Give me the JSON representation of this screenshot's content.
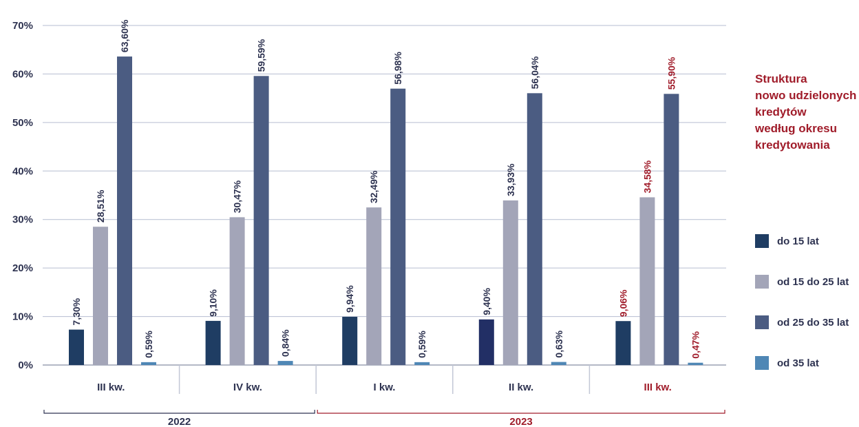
{
  "colors": {
    "series": [
      "#1f3d63",
      "#a3a5b8",
      "#4b5c82",
      "#4f87b5"
    ],
    "accent_red": "#a01c2a",
    "dark_text": "#2d3250",
    "navy_bar_variant": "#222f65"
  },
  "side_title": [
    "Struktura",
    "nowo udzielonych",
    "kredytów",
    "według okresu",
    "kredytowania"
  ],
  "chart_data": {
    "type": "bar",
    "categories": [
      "III kw.",
      "IV kw.",
      "I kw.",
      "II kw.",
      "III kw."
    ],
    "category_colors": [
      "#2d3250",
      "#2d3250",
      "#2d3250",
      "#2d3250",
      "#a01c2a"
    ],
    "groups": [
      {
        "label": "2022",
        "span": [
          0,
          1
        ],
        "color": "#2d3250"
      },
      {
        "label": "2023",
        "span": [
          2,
          4
        ],
        "color": "#a01c2a"
      }
    ],
    "series": [
      {
        "name": "do 15 lat",
        "values": [
          7.3,
          9.1,
          9.94,
          9.4,
          9.06
        ],
        "labels": [
          "7,30%",
          "9,10%",
          "9,94%",
          "9,40%",
          "9,06%"
        ]
      },
      {
        "name": "od 15 do 25 lat",
        "values": [
          28.51,
          30.47,
          32.49,
          33.93,
          34.58
        ],
        "labels": [
          "28,51%",
          "30,47%",
          "32,49%",
          "33,93%",
          "34,58%"
        ]
      },
      {
        "name": "od 25 do 35 lat",
        "values": [
          63.6,
          59.59,
          56.98,
          56.04,
          55.9
        ],
        "labels": [
          "63,60%",
          "59,59%",
          "56,98%",
          "56,04%",
          "55,90%"
        ]
      },
      {
        "name": "od 35 lat",
        "values": [
          0.59,
          0.84,
          0.59,
          0.63,
          0.47
        ],
        "labels": [
          "0,59%",
          "0,84%",
          "0,59%",
          "0,63%",
          "0,47%"
        ]
      }
    ],
    "yticks": [
      "0%",
      "10%",
      "20%",
      "30%",
      "40%",
      "50%",
      "60%",
      "70%"
    ],
    "ylim": [
      0,
      70
    ],
    "grid": true,
    "legend": "right"
  }
}
